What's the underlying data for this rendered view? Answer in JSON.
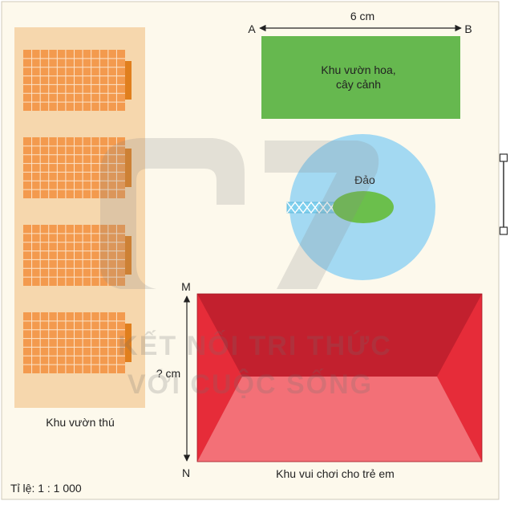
{
  "labels": {
    "point_a": "A",
    "point_b": "B",
    "width_ab": "6 cm",
    "flower_garden_line1": "Khu vườn hoa,",
    "flower_garden_line2": "cây cảnh",
    "island": "Đảo",
    "point_m": "M",
    "point_n": "N",
    "unknown_height": "? cm",
    "zoo": "Khu vườn thú",
    "playground": "Khu vui chơi cho trẻ em",
    "scale": "Tỉ lệ: 1 : 1 000"
  },
  "watermark": {
    "line1": "KẾT NỐI TRI THỨC",
    "line2": "VỚI CUỘC SỐNG"
  },
  "colors": {
    "background": "#fdf9ec",
    "zoo_area": "#f6d7ad",
    "cage": "#f39a4e",
    "cage_grid": "#fbe3c9",
    "cage_side": "#e07f1e",
    "flower_garden": "#66b84f",
    "lake": "#a3d9f2",
    "island": "#6bbf4c",
    "bridge": "#7fd0ee",
    "playground_top": "#c2202e",
    "playground_side": "#e62c39",
    "playground_front": "#f37077"
  }
}
